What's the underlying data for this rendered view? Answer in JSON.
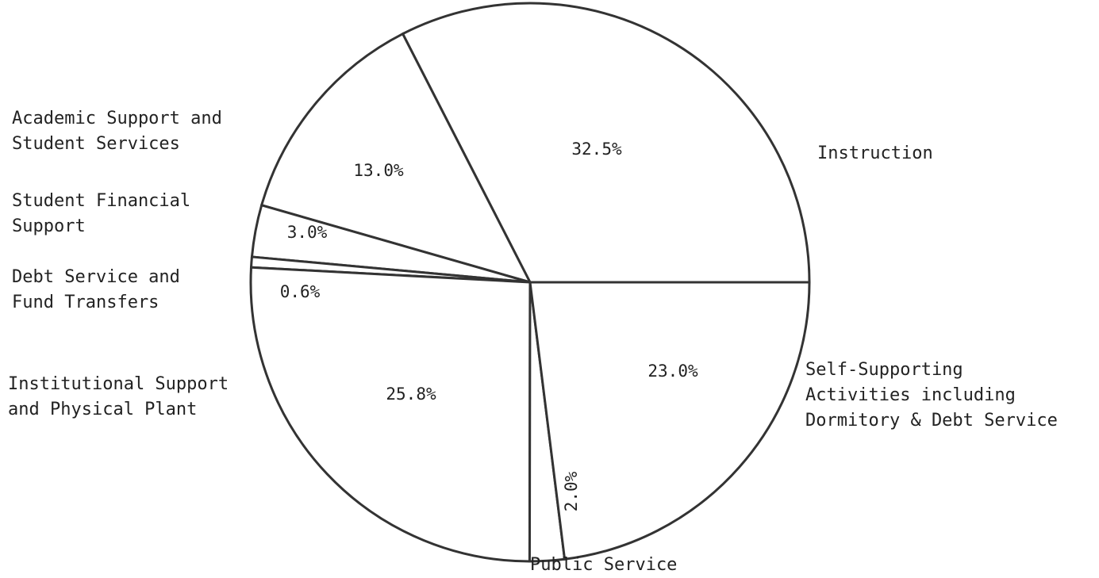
{
  "chart_data": {
    "type": "pie",
    "categories": [
      "Instruction",
      "Academic Support and\nStudent Services",
      "Student Financial\nSupport",
      "Debt Service and\nFund Transfers",
      "Institutional Support\nand Physical Plant",
      "Public Service",
      "Self-Supporting\nActivities including\nDormitory & Debt Service"
    ],
    "values": [
      32.5,
      13.0,
      3.0,
      0.6,
      25.8,
      2.0,
      23.0
    ],
    "value_labels": [
      "32.5%",
      "13.0%",
      "3.0%",
      "0.6%",
      "25.8%",
      "2.0%",
      "23.0%"
    ],
    "color": "#ffffff"
  }
}
